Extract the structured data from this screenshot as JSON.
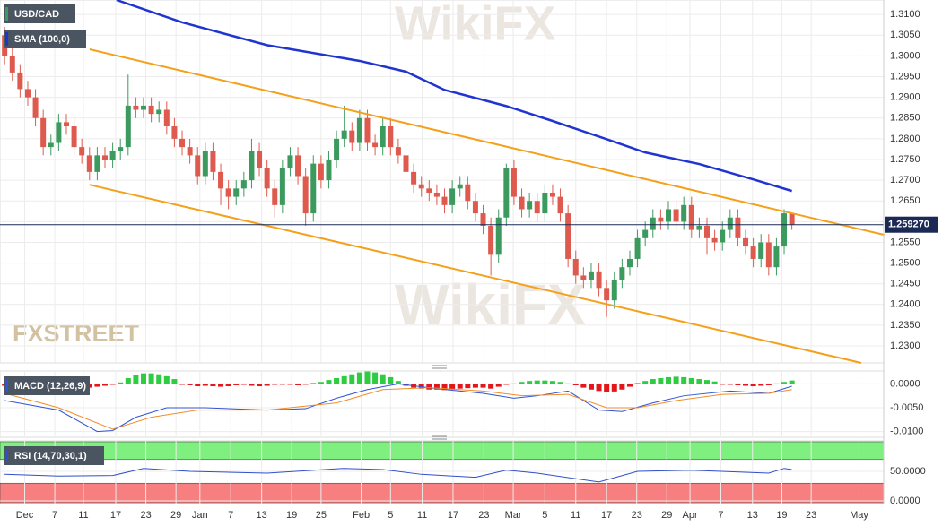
{
  "chart_data": [
    {
      "type": "candlestick",
      "title": "USD/CAD",
      "up_color": "#3c9a5f",
      "down_color": "#df5a4e",
      "candles": [
        [
          1.305,
          1.307,
          1.298,
          1.3
        ],
        [
          1.3,
          1.302,
          1.294,
          1.296
        ],
        [
          1.296,
          1.298,
          1.29,
          1.292
        ],
        [
          1.292,
          1.294,
          1.288,
          1.29
        ],
        [
          1.29,
          1.292,
          1.283,
          1.285
        ],
        [
          1.285,
          1.287,
          1.276,
          1.278
        ],
        [
          1.278,
          1.281,
          1.276,
          1.279
        ],
        [
          1.279,
          1.286,
          1.277,
          1.284
        ],
        [
          1.284,
          1.286,
          1.281,
          1.283
        ],
        [
          1.283,
          1.285,
          1.276,
          1.278
        ],
        [
          1.278,
          1.28,
          1.274,
          1.276
        ],
        [
          1.276,
          1.278,
          1.27,
          1.272
        ],
        [
          1.272,
          1.278,
          1.27,
          1.276
        ],
        [
          1.276,
          1.278,
          1.273,
          1.275
        ],
        [
          1.275,
          1.279,
          1.273,
          1.277
        ],
        [
          1.277,
          1.28,
          1.275,
          1.278
        ],
        [
          1.278,
          1.2955,
          1.276,
          1.288
        ],
        [
          1.288,
          1.29,
          1.285,
          1.287
        ],
        [
          1.287,
          1.29,
          1.285,
          1.288
        ],
        [
          1.288,
          1.29,
          1.284,
          1.286
        ],
        [
          1.286,
          1.289,
          1.284,
          1.287
        ],
        [
          1.287,
          1.289,
          1.281,
          1.283
        ],
        [
          1.283,
          1.285,
          1.278,
          1.28
        ],
        [
          1.28,
          1.282,
          1.276,
          1.278
        ],
        [
          1.278,
          1.28,
          1.274,
          1.276
        ],
        [
          1.276,
          1.278,
          1.269,
          1.271
        ],
        [
          1.271,
          1.279,
          1.269,
          1.277
        ],
        [
          1.277,
          1.279,
          1.27,
          1.272
        ],
        [
          1.272,
          1.274,
          1.264,
          1.268
        ],
        [
          1.268,
          1.27,
          1.263,
          1.266
        ],
        [
          1.266,
          1.27,
          1.264,
          1.268
        ],
        [
          1.268,
          1.272,
          1.266,
          1.27
        ],
        [
          1.27,
          1.28,
          1.268,
          1.277
        ],
        [
          1.277,
          1.279,
          1.271,
          1.273
        ],
        [
          1.273,
          1.275,
          1.266,
          1.268
        ],
        [
          1.268,
          1.27,
          1.261,
          1.264
        ],
        [
          1.264,
          1.275,
          1.262,
          1.273
        ],
        [
          1.273,
          1.278,
          1.271,
          1.276
        ],
        [
          1.276,
          1.278,
          1.269,
          1.271
        ],
        [
          1.271,
          1.273,
          1.259,
          1.262
        ],
        [
          1.262,
          1.276,
          1.26,
          1.274
        ],
        [
          1.274,
          1.276,
          1.268,
          1.27
        ],
        [
          1.27,
          1.277,
          1.268,
          1.275
        ],
        [
          1.275,
          1.282,
          1.273,
          1.28
        ],
        [
          1.28,
          1.288,
          1.278,
          1.282
        ],
        [
          1.282,
          1.284,
          1.277,
          1.279
        ],
        [
          1.279,
          1.287,
          1.277,
          1.285
        ],
        [
          1.285,
          1.287,
          1.277,
          1.279
        ],
        [
          1.279,
          1.281,
          1.276,
          1.278
        ],
        [
          1.278,
          1.285,
          1.276,
          1.283
        ],
        [
          1.283,
          1.285,
          1.276,
          1.278
        ],
        [
          1.278,
          1.28,
          1.274,
          1.276
        ],
        [
          1.276,
          1.278,
          1.27,
          1.272
        ],
        [
          1.272,
          1.274,
          1.267,
          1.269
        ],
        [
          1.269,
          1.271,
          1.266,
          1.268
        ],
        [
          1.268,
          1.27,
          1.265,
          1.267
        ],
        [
          1.267,
          1.269,
          1.264,
          1.266
        ],
        [
          1.266,
          1.268,
          1.262,
          1.264
        ],
        [
          1.264,
          1.27,
          1.262,
          1.268
        ],
        [
          1.268,
          1.271,
          1.266,
          1.269
        ],
        [
          1.269,
          1.271,
          1.263,
          1.265
        ],
        [
          1.265,
          1.267,
          1.26,
          1.262
        ],
        [
          1.262,
          1.264,
          1.257,
          1.259
        ],
        [
          1.259,
          1.261,
          1.247,
          1.252
        ],
        [
          1.252,
          1.263,
          1.25,
          1.261
        ],
        [
          1.261,
          1.274,
          1.259,
          1.273
        ],
        [
          1.273,
          1.275,
          1.264,
          1.266
        ],
        [
          1.266,
          1.268,
          1.261,
          1.263
        ],
        [
          1.263,
          1.267,
          1.261,
          1.265
        ],
        [
          1.265,
          1.267,
          1.26,
          1.262
        ],
        [
          1.262,
          1.269,
          1.26,
          1.267
        ],
        [
          1.267,
          1.269,
          1.264,
          1.266
        ],
        [
          1.266,
          1.268,
          1.26,
          1.262
        ],
        [
          1.262,
          1.264,
          1.249,
          1.251
        ],
        [
          1.251,
          1.253,
          1.245,
          1.247
        ],
        [
          1.247,
          1.249,
          1.244,
          1.246
        ],
        [
          1.246,
          1.25,
          1.244,
          1.248
        ],
        [
          1.248,
          1.25,
          1.242,
          1.244
        ],
        [
          1.244,
          1.246,
          1.237,
          1.241
        ],
        [
          1.241,
          1.248,
          1.239,
          1.246
        ],
        [
          1.246,
          1.251,
          1.244,
          1.249
        ],
        [
          1.249,
          1.253,
          1.247,
          1.251
        ],
        [
          1.251,
          1.258,
          1.249,
          1.256
        ],
        [
          1.256,
          1.26,
          1.254,
          1.258
        ],
        [
          1.258,
          1.263,
          1.256,
          1.261
        ],
        [
          1.261,
          1.263,
          1.258,
          1.26
        ],
        [
          1.26,
          1.265,
          1.258,
          1.263
        ],
        [
          1.263,
          1.265,
          1.258,
          1.26
        ],
        [
          1.26,
          1.266,
          1.258,
          1.264
        ],
        [
          1.264,
          1.266,
          1.256,
          1.258
        ],
        [
          1.258,
          1.261,
          1.256,
          1.259
        ],
        [
          1.259,
          1.261,
          1.252,
          1.256
        ],
        [
          1.256,
          1.258,
          1.253,
          1.255
        ],
        [
          1.255,
          1.26,
          1.253,
          1.258
        ],
        [
          1.258,
          1.263,
          1.256,
          1.261
        ],
        [
          1.261,
          1.263,
          1.254,
          1.256
        ],
        [
          1.256,
          1.258,
          1.252,
          1.254
        ],
        [
          1.254,
          1.256,
          1.249,
          1.251
        ],
        [
          1.251,
          1.257,
          1.249,
          1.255
        ],
        [
          1.255,
          1.257,
          1.247,
          1.249
        ],
        [
          1.249,
          1.256,
          1.247,
          1.254
        ],
        [
          1.254,
          1.263,
          1.252,
          1.262
        ],
        [
          1.262,
          1.262,
          1.258,
          1.2593
        ]
      ],
      "xlim": [
        0.4,
        114.9
      ],
      "ylim": [
        1.2259,
        1.3135
      ],
      "yticks": [
        {
          "value": 1.23,
          "label": "1.2300"
        },
        {
          "value": 1.235,
          "label": "1.2350"
        },
        {
          "value": 1.24,
          "label": "1.2400"
        },
        {
          "value": 1.245,
          "label": "1.2450"
        },
        {
          "value": 1.25,
          "label": "1.2500"
        },
        {
          "value": 1.255,
          "label": "1.2550"
        },
        {
          "value": 1.26,
          "label": "1.2600"
        },
        {
          "value": 1.265,
          "label": "1.2650"
        },
        {
          "value": 1.27,
          "label": "1.2700"
        },
        {
          "value": 1.275,
          "label": "1.2750"
        },
        {
          "value": 1.28,
          "label": "1.2800"
        },
        {
          "value": 1.285,
          "label": "1.2850"
        },
        {
          "value": 1.29,
          "label": "1.2900"
        },
        {
          "value": 1.295,
          "label": "1.2950"
        },
        {
          "value": 1.3,
          "label": "1.3000"
        },
        {
          "value": 1.305,
          "label": "1.3050"
        },
        {
          "value": 1.31,
          "label": "1.3100"
        }
      ],
      "grid": true,
      "current_price": {
        "value": 1.25927,
        "label": "1.259270"
      },
      "overlays": [
        {
          "name": "SMA (100,0)",
          "color": "#2035d0",
          "x": [
            15.5,
            24,
            35,
            47,
            53,
            58,
            66,
            72,
            79,
            84,
            91,
            98,
            103
          ],
          "values": [
            1.3135,
            1.3081,
            1.3026,
            1.2988,
            1.2962,
            1.2918,
            1.2879,
            1.2843,
            1.2799,
            1.2767,
            1.2739,
            1.2702,
            1.2674
          ]
        }
      ],
      "trendlines": [
        {
          "color": "#f5a01a",
          "x": [
            12,
            115
          ],
          "values": [
            1.3016,
            1.2568
          ]
        },
        {
          "color": "#f5a01a",
          "x": [
            12,
            112
          ],
          "values": [
            1.2689,
            1.2259
          ]
        }
      ],
      "watermark": "FXSTREET",
      "watermark_wikifx": "WikiFX"
    },
    {
      "type": "macd",
      "title": "MACD (12,26,9)",
      "up_color": "#2ecc40",
      "down_color": "#e3161c",
      "xlim": [
        0.4,
        114.9
      ],
      "ylim": [
        -0.0112,
        0.0027
      ],
      "histogram": [
        -0.0004,
        -0.0006,
        -0.0008,
        -0.0008,
        -0.0006,
        -0.0004,
        -0.0004,
        -0.0003,
        -0.0003,
        -0.0004,
        -0.0006,
        -0.0008,
        -0.0006,
        -0.0004,
        -0.0002,
        0.0003,
        0.0012,
        0.0018,
        0.0022,
        0.0022,
        0.002,
        0.0016,
        0.001,
        -0.0002,
        -0.0003,
        -0.0005,
        -0.0004,
        -0.0005,
        -0.0006,
        -0.0005,
        -0.0003,
        -0.0002,
        -0.0004,
        -0.0005,
        -0.0004,
        -0.0002,
        -0.0001,
        -0.0002,
        -0.0003,
        -0.0001,
        0.0002,
        0.0004,
        0.0008,
        0.0012,
        0.0016,
        0.002,
        0.0024,
        0.0026,
        0.0024,
        0.002,
        0.0014,
        0.0006,
        -0.0004,
        -0.0008,
        -0.001,
        -0.0012,
        -0.0012,
        -0.0013,
        -0.0012,
        -0.001,
        -0.0009,
        -0.0008,
        -0.0008,
        -0.001,
        -0.0006,
        -0.0002,
        0.0001,
        0.0004,
        0.0006,
        0.0007,
        0.0007,
        0.0006,
        0.0004,
        0.0001,
        -0.0003,
        -0.0008,
        -0.0012,
        -0.0015,
        -0.0017,
        -0.0016,
        -0.0012,
        -0.0006,
        0.0002,
        0.0006,
        0.001,
        0.0012,
        0.0014,
        0.0015,
        0.0014,
        0.0012,
        0.001,
        0.0008,
        0.0005,
        -0.0001,
        -0.0002,
        -0.0003,
        -0.0004,
        -0.0005,
        -0.0004,
        -0.0003,
        0.0001,
        0.0004,
        0.0007
      ],
      "series": [
        {
          "color": "#2f55d4",
          "x": [
            1,
            8,
            13,
            15,
            18,
            22,
            27,
            35,
            40,
            44,
            48,
            52,
            57,
            63,
            67,
            70,
            74,
            78,
            81,
            85,
            89,
            95,
            100,
            103
          ],
          "values": [
            -0.0035,
            -0.0055,
            -0.01,
            -0.0098,
            -0.007,
            -0.005,
            -0.005,
            -0.0055,
            -0.0052,
            -0.003,
            -0.0012,
            0.0,
            -0.001,
            -0.002,
            -0.003,
            -0.0025,
            -0.0015,
            -0.0055,
            -0.0058,
            -0.004,
            -0.0025,
            -0.0015,
            -0.002,
            -0.0005
          ]
        },
        {
          "color": "#f28c28",
          "x": [
            1,
            8,
            15,
            20,
            26,
            35,
            44,
            50,
            56,
            63,
            68,
            74,
            79,
            83,
            88,
            94,
            100,
            103
          ],
          "values": [
            -0.002,
            -0.005,
            -0.0095,
            -0.007,
            -0.0055,
            -0.0055,
            -0.004,
            -0.0012,
            -0.0008,
            -0.0015,
            -0.0025,
            -0.0022,
            -0.005,
            -0.005,
            -0.0035,
            -0.0022,
            -0.002,
            -0.0012
          ]
        }
      ],
      "yticks": [
        {
          "value": 0,
          "label": "0.0000"
        },
        {
          "value": -0.005,
          "label": "-0.0050"
        },
        {
          "value": -0.01,
          "label": "-0.0100"
        }
      ]
    },
    {
      "type": "rsi",
      "title": "RSI (14,70,30,1)",
      "bands": [
        30,
        70
      ],
      "band_colors": [
        "#f77f7f",
        "#7ff07f"
      ],
      "xlim": [
        0.4,
        114.9
      ],
      "ylim": [
        -4.5,
        101.5
      ],
      "series": [
        {
          "color": "#3050c8",
          "x": [
            1,
            8,
            15,
            19,
            25,
            35,
            45,
            50,
            55,
            62,
            66,
            70,
            78,
            83,
            90,
            100,
            102,
            103
          ],
          "values": [
            45,
            42,
            43,
            55,
            50,
            47,
            55,
            53,
            45,
            40,
            52,
            47,
            32,
            50,
            52,
            47,
            55,
            53
          ]
        }
      ],
      "yticks": [
        {
          "value": 50,
          "label": "50.0000"
        },
        {
          "value": 0,
          "label": "0.0000"
        }
      ],
      "xticks": [
        {
          "value": 3.6,
          "label": "Dec"
        },
        {
          "value": 7.5,
          "label": "7"
        },
        {
          "value": 11.2,
          "label": "11"
        },
        {
          "value": 15.4,
          "label": "17"
        },
        {
          "value": 19.3,
          "label": "23"
        },
        {
          "value": 23.2,
          "label": "29"
        },
        {
          "value": 26.3,
          "label": "Jan"
        },
        {
          "value": 30.3,
          "label": "7"
        },
        {
          "value": 34.3,
          "label": "13"
        },
        {
          "value": 38.2,
          "label": "19"
        },
        {
          "value": 42.0,
          "label": "25"
        },
        {
          "value": 47.2,
          "label": "Feb"
        },
        {
          "value": 51.0,
          "label": "5"
        },
        {
          "value": 55.1,
          "label": "11"
        },
        {
          "value": 59.1,
          "label": "17"
        },
        {
          "value": 63.1,
          "label": "23"
        },
        {
          "value": 66.9,
          "label": "Mar"
        },
        {
          "value": 71.0,
          "label": "5"
        },
        {
          "value": 75.0,
          "label": "11"
        },
        {
          "value": 79.0,
          "label": "17"
        },
        {
          "value": 82.9,
          "label": "23"
        },
        {
          "value": 86.8,
          "label": "29"
        },
        {
          "value": 89.8,
          "label": "Apr"
        },
        {
          "value": 93.8,
          "label": "7"
        },
        {
          "value": 97.9,
          "label": "13"
        },
        {
          "value": 101.7,
          "label": "19"
        },
        {
          "value": 105.5,
          "label": "23"
        },
        {
          "value": 111.7,
          "label": "May"
        }
      ]
    }
  ]
}
